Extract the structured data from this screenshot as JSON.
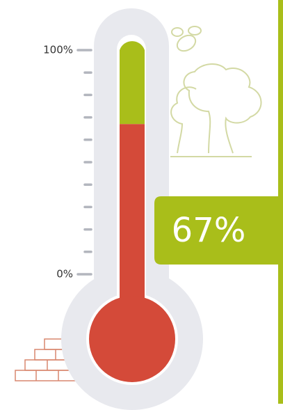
{
  "chart_data": {
    "type": "thermometer",
    "values": [
      67
    ],
    "value_labels": [
      "67%"
    ],
    "color": "#d44a39",
    "empty_color": "#a9be1a",
    "ylim": [
      0,
      100
    ],
    "yticks": [
      {
        "value": 0,
        "label": "0%"
      },
      {
        "value": 10,
        "label": null
      },
      {
        "value": 20,
        "label": null
      },
      {
        "value": 30,
        "label": null
      },
      {
        "value": 40,
        "label": null
      },
      {
        "value": 50,
        "label": null
      },
      {
        "value": 60,
        "label": null
      },
      {
        "value": 70,
        "label": null
      },
      {
        "value": 80,
        "label": null
      },
      {
        "value": 90,
        "label": null
      },
      {
        "value": 100,
        "label": "100%"
      }
    ]
  }
}
